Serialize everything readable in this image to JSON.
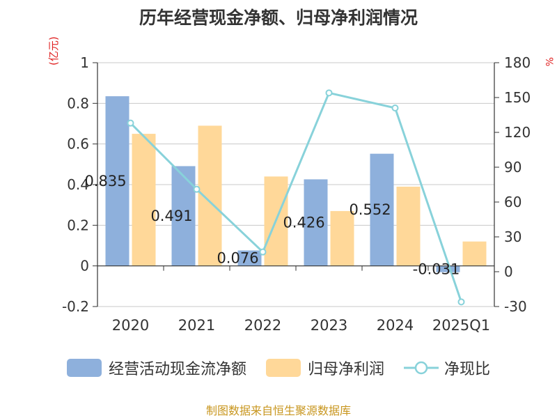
{
  "chart_data": {
    "type": "bar",
    "title": "历年经营现金净额、归母净利润情况",
    "left_unit": "(亿元)",
    "right_unit": "%",
    "categories": [
      "2020",
      "2021",
      "2022",
      "2023",
      "2024",
      "2025Q1"
    ],
    "series": [
      {
        "name": "经营活动现金流净额",
        "type": "bar",
        "axis": "left",
        "color": "#8eb0dc",
        "values": [
          0.835,
          0.491,
          0.076,
          0.426,
          0.552,
          -0.031
        ],
        "labels": [
          "0.835",
          "0.491",
          "0.076",
          "0.426",
          "0.552",
          "-0.031"
        ]
      },
      {
        "name": "归母净利润",
        "type": "bar",
        "axis": "left",
        "color": "#ffd899",
        "values": [
          0.65,
          0.69,
          0.44,
          0.27,
          0.39,
          0.12
        ]
      },
      {
        "name": "净现比",
        "type": "line",
        "axis": "right",
        "color": "#88d2da",
        "values": [
          128,
          71,
          17,
          154,
          141,
          -26
        ]
      }
    ],
    "left_axis": {
      "ylim": [
        -0.2,
        1
      ],
      "ticks": [
        "-0.2",
        "0",
        "0.2",
        "0.4",
        "0.6",
        "0.8",
        "1"
      ]
    },
    "right_axis": {
      "ylim": [
        -30,
        180
      ],
      "ticks": [
        "-30",
        "0",
        "30",
        "60",
        "90",
        "120",
        "150",
        "180"
      ]
    },
    "grid": true,
    "legend_position": "bottom"
  },
  "source": "制图数据来自恒生聚源数据库"
}
